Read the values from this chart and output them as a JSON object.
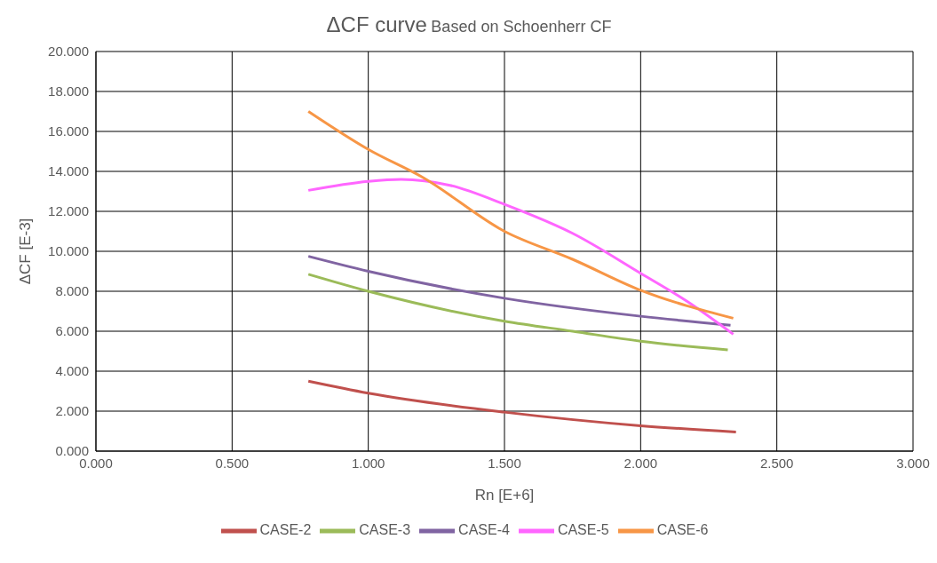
{
  "chart_data": {
    "type": "line",
    "title": "ΔCF curve",
    "subtitle": "Based on Schoenherr CF",
    "xlabel": "Rn [E+6]",
    "ylabel": "ΔCF [E-3]",
    "xlim": [
      0,
      3
    ],
    "xticks": [
      {
        "value": 0,
        "label": "0.000"
      },
      {
        "value": 0.5,
        "label": "0.500"
      },
      {
        "value": 1,
        "label": "1.000"
      },
      {
        "value": 1.5,
        "label": "1.500"
      },
      {
        "value": 2,
        "label": "2.000"
      },
      {
        "value": 2.5,
        "label": "2.500"
      },
      {
        "value": 3,
        "label": "3.000"
      }
    ],
    "ylim": [
      0,
      20
    ],
    "yticks": [
      {
        "value": 0,
        "label": "0.000"
      },
      {
        "value": 2,
        "label": "2.000"
      },
      {
        "value": 4,
        "label": "4.000"
      },
      {
        "value": 6,
        "label": "6.000"
      },
      {
        "value": 8,
        "label": "8.000"
      },
      {
        "value": 10,
        "label": "10.000"
      },
      {
        "value": 12,
        "label": "12.000"
      },
      {
        "value": 14,
        "label": "14.000"
      },
      {
        "value": 16,
        "label": "16.000"
      },
      {
        "value": 18,
        "label": "18.000"
      },
      {
        "value": 20,
        "label": "20.000"
      }
    ],
    "grid": true,
    "legend": "bottom",
    "marker": "none",
    "line_style": "solid",
    "series": [
      {
        "name": "CASE-2",
        "color": "#c0504d",
        "x": [
          0.78,
          1.0,
          1.5,
          2.0,
          2.35
        ],
        "values": [
          3.5,
          2.9,
          1.95,
          1.27,
          0.96
        ]
      },
      {
        "name": "CASE-3",
        "color": "#9bbb59",
        "x": [
          0.78,
          1.0,
          1.5,
          1.75,
          2.0,
          2.32
        ],
        "values": [
          8.85,
          8.0,
          6.5,
          6.0,
          5.5,
          5.07
        ]
      },
      {
        "name": "CASE-4",
        "color": "#8064a2",
        "x": [
          0.78,
          1.0,
          1.5,
          2.0,
          2.33
        ],
        "values": [
          9.75,
          9.0,
          7.65,
          6.75,
          6.3
        ]
      },
      {
        "name": "CASE-5",
        "color": "#ff66ff",
        "x": [
          0.78,
          1.0,
          1.12,
          1.3,
          1.5,
          1.75,
          2.0,
          2.17,
          2.34
        ],
        "values": [
          13.05,
          13.5,
          13.6,
          13.3,
          12.35,
          10.9,
          8.9,
          7.5,
          5.85
        ]
      },
      {
        "name": "CASE-6",
        "color": "#f79646",
        "x": [
          0.78,
          1.0,
          1.2,
          1.5,
          1.75,
          2.0,
          2.34
        ],
        "values": [
          17.0,
          15.1,
          13.7,
          11.0,
          9.6,
          8.05,
          6.65
        ]
      }
    ]
  }
}
